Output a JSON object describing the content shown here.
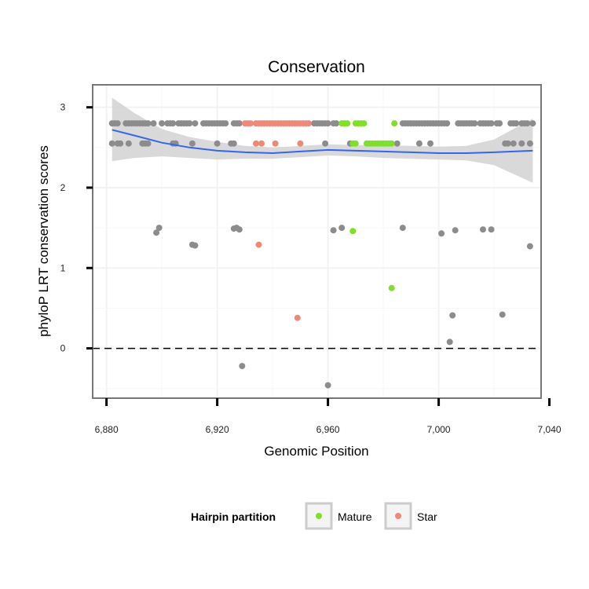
{
  "chart_data": {
    "type": "scatter",
    "title": "Conservation",
    "xlabel": "Genomic Position",
    "ylabel": "phyloP LRT conservation scores",
    "xlim": [
      6875,
      6878.5,
      7037
    ],
    "x_range": [
      6875,
      7037
    ],
    "y_range": [
      -0.62,
      3.28
    ],
    "x_ticks": [
      6880,
      6920,
      6960,
      7000,
      7040
    ],
    "x_tick_labels": [
      "6,880",
      "6,920",
      "6,960",
      "7,000",
      "7,040"
    ],
    "y_ticks": [
      0,
      1,
      2,
      3
    ],
    "y_tick_labels": [
      "0",
      "1",
      "2",
      "3"
    ],
    "grid": true,
    "reference_line": {
      "y": 0,
      "style": "dashed"
    },
    "legend": {
      "title": "Hairpin partition",
      "placement": "bottom",
      "entries": [
        {
          "label": "Mature",
          "color": "#7fe02a"
        },
        {
          "label": "Star",
          "color": "#f08878"
        }
      ]
    },
    "colors": {
      "other": "#8c8c8c",
      "Mature": "#7fe02a",
      "Star": "#f08878",
      "smooth": "#3366ee",
      "band": "#d2d2d2"
    },
    "series": [
      {
        "group": "other",
        "points": [
          [
            6882,
            2.8
          ],
          [
            6883,
            2.8
          ],
          [
            6884,
            2.8
          ],
          [
            6887,
            2.8
          ],
          [
            6888,
            2.8
          ],
          [
            6889,
            2.8
          ],
          [
            6890,
            2.8
          ],
          [
            6891,
            2.8
          ],
          [
            6892,
            2.8
          ],
          [
            6893,
            2.8
          ],
          [
            6894,
            2.8
          ],
          [
            6895,
            2.8
          ],
          [
            6897,
            2.8
          ],
          [
            6900,
            2.8
          ],
          [
            6902,
            2.8
          ],
          [
            6903,
            2.8
          ],
          [
            6904,
            2.8
          ],
          [
            6906,
            2.8
          ],
          [
            6907,
            2.8
          ],
          [
            6908,
            2.8
          ],
          [
            6909,
            2.8
          ],
          [
            6910,
            2.8
          ],
          [
            6912,
            2.8
          ],
          [
            6915,
            2.8
          ],
          [
            6916,
            2.8
          ],
          [
            6917,
            2.8
          ],
          [
            6918,
            2.8
          ],
          [
            6919,
            2.8
          ],
          [
            6920,
            2.8
          ],
          [
            6921,
            2.8
          ],
          [
            6922,
            2.8
          ],
          [
            6923,
            2.8
          ],
          [
            6926,
            2.8
          ],
          [
            6927,
            2.8
          ],
          [
            6928,
            2.8
          ],
          [
            6955,
            2.8
          ],
          [
            6956,
            2.8
          ],
          [
            6957,
            2.8
          ],
          [
            6958,
            2.8
          ],
          [
            6959,
            2.8
          ],
          [
            6960,
            2.8
          ],
          [
            6962,
            2.8
          ],
          [
            6963,
            2.8
          ],
          [
            6987,
            2.8
          ],
          [
            6988,
            2.8
          ],
          [
            6989,
            2.8
          ],
          [
            6990,
            2.8
          ],
          [
            6991,
            2.8
          ],
          [
            6992,
            2.8
          ],
          [
            6993,
            2.8
          ],
          [
            6994,
            2.8
          ],
          [
            6995,
            2.8
          ],
          [
            6996,
            2.8
          ],
          [
            6997,
            2.8
          ],
          [
            6998,
            2.8
          ],
          [
            6999,
            2.8
          ],
          [
            7000,
            2.8
          ],
          [
            7001,
            2.8
          ],
          [
            7002,
            2.8
          ],
          [
            7003,
            2.8
          ],
          [
            7007,
            2.8
          ],
          [
            7008,
            2.8
          ],
          [
            7009,
            2.8
          ],
          [
            7010,
            2.8
          ],
          [
            7011,
            2.8
          ],
          [
            7012,
            2.8
          ],
          [
            7013,
            2.8
          ],
          [
            7015,
            2.8
          ],
          [
            7016,
            2.8
          ],
          [
            7017,
            2.8
          ],
          [
            7018,
            2.8
          ],
          [
            7019,
            2.8
          ],
          [
            7021,
            2.8
          ],
          [
            7022,
            2.8
          ],
          [
            7026,
            2.8
          ],
          [
            7027,
            2.8
          ],
          [
            7028,
            2.8
          ],
          [
            7030,
            2.8
          ],
          [
            7031,
            2.8
          ],
          [
            7032,
            2.8
          ],
          [
            7034,
            2.8
          ],
          [
            6882,
            2.55
          ],
          [
            6884,
            2.55
          ],
          [
            6885,
            2.55
          ],
          [
            6888,
            2.55
          ],
          [
            6893,
            2.55
          ],
          [
            6894,
            2.55
          ],
          [
            6895,
            2.55
          ],
          [
            6904,
            2.55
          ],
          [
            6905,
            2.55
          ],
          [
            6911,
            2.55
          ],
          [
            6920,
            2.55
          ],
          [
            6925,
            2.55
          ],
          [
            6926,
            2.55
          ],
          [
            6959,
            2.55
          ],
          [
            6968,
            2.55
          ],
          [
            6985,
            2.55
          ],
          [
            6993,
            2.55
          ],
          [
            6997,
            2.55
          ],
          [
            7024,
            2.55
          ],
          [
            7025,
            2.55
          ],
          [
            7027,
            2.55
          ],
          [
            7030,
            2.55
          ],
          [
            7033,
            2.55
          ],
          [
            6898,
            1.44
          ],
          [
            6899,
            1.5
          ],
          [
            6911,
            1.29
          ],
          [
            6912,
            1.28
          ],
          [
            6926,
            1.49
          ],
          [
            6927,
            1.5
          ],
          [
            6928,
            1.48
          ],
          [
            6962,
            1.47
          ],
          [
            6965,
            1.5
          ],
          [
            6987,
            1.5
          ],
          [
            7001,
            1.43
          ],
          [
            7006,
            1.47
          ],
          [
            7016,
            1.48
          ],
          [
            7019,
            1.48
          ],
          [
            7033,
            1.27
          ],
          [
            7005,
            0.41
          ],
          [
            7023,
            0.42
          ],
          [
            7004,
            0.08
          ],
          [
            6929,
            -0.22
          ],
          [
            6960,
            -0.46
          ]
        ]
      },
      {
        "group": "Star",
        "points": [
          [
            6930,
            2.8
          ],
          [
            6931,
            2.8
          ],
          [
            6932,
            2.8
          ],
          [
            6934,
            2.8
          ],
          [
            6935,
            2.8
          ],
          [
            6936,
            2.8
          ],
          [
            6937,
            2.8
          ],
          [
            6938,
            2.8
          ],
          [
            6939,
            2.8
          ],
          [
            6940,
            2.8
          ],
          [
            6941,
            2.8
          ],
          [
            6942,
            2.8
          ],
          [
            6943,
            2.8
          ],
          [
            6944,
            2.8
          ],
          [
            6945,
            2.8
          ],
          [
            6946,
            2.8
          ],
          [
            6947,
            2.8
          ],
          [
            6948,
            2.8
          ],
          [
            6949,
            2.8
          ],
          [
            6950,
            2.8
          ],
          [
            6951,
            2.8
          ],
          [
            6952,
            2.8
          ],
          [
            6953,
            2.8
          ],
          [
            6934,
            2.55
          ],
          [
            6936,
            2.55
          ],
          [
            6941,
            2.55
          ],
          [
            6950,
            2.55
          ],
          [
            6935,
            1.29
          ],
          [
            6949,
            0.38
          ]
        ]
      },
      {
        "group": "Mature",
        "points": [
          [
            6965,
            2.8
          ],
          [
            6966,
            2.8
          ],
          [
            6967,
            2.8
          ],
          [
            6970,
            2.8
          ],
          [
            6971,
            2.8
          ],
          [
            6972,
            2.8
          ],
          [
            6973,
            2.8
          ],
          [
            6984,
            2.8
          ],
          [
            6969,
            2.55
          ],
          [
            6970,
            2.55
          ],
          [
            6974,
            2.55
          ],
          [
            6975,
            2.55
          ],
          [
            6976,
            2.55
          ],
          [
            6977,
            2.55
          ],
          [
            6978,
            2.55
          ],
          [
            6979,
            2.55
          ],
          [
            6980,
            2.55
          ],
          [
            6981,
            2.55
          ],
          [
            6982,
            2.55
          ],
          [
            6983,
            2.55
          ],
          [
            6969,
            1.46
          ],
          [
            6983,
            0.75
          ]
        ]
      }
    ],
    "smooth": {
      "x": [
        6882,
        6890,
        6900,
        6910,
        6920,
        6930,
        6940,
        6950,
        6960,
        6970,
        6980,
        6990,
        7000,
        7010,
        7020,
        7034
      ],
      "y": [
        2.72,
        2.65,
        2.56,
        2.5,
        2.46,
        2.44,
        2.43,
        2.45,
        2.47,
        2.46,
        2.45,
        2.44,
        2.43,
        2.43,
        2.44,
        2.46
      ],
      "lower": [
        2.33,
        2.37,
        2.39,
        2.37,
        2.35,
        2.36,
        2.36,
        2.38,
        2.4,
        2.39,
        2.37,
        2.36,
        2.35,
        2.34,
        2.28,
        2.06
      ],
      "upper": [
        3.12,
        2.93,
        2.73,
        2.63,
        2.57,
        2.52,
        2.5,
        2.52,
        2.54,
        2.53,
        2.53,
        2.52,
        2.51,
        2.52,
        2.6,
        2.86
      ]
    }
  }
}
